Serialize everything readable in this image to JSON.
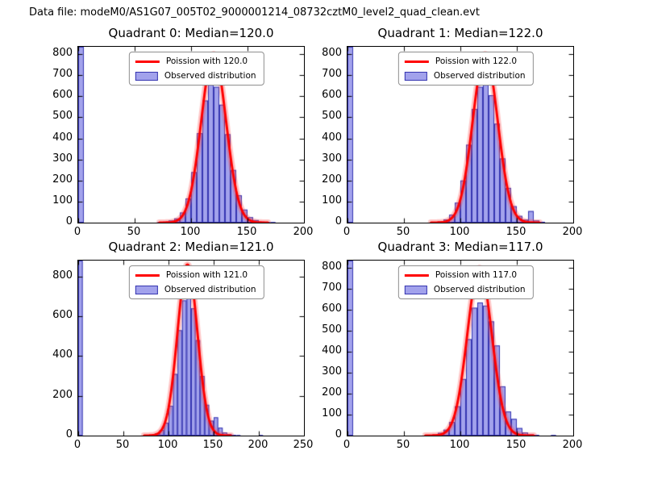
{
  "figure": {
    "title": "Data file: modeM0/AS1G07_005T02_9000001214_08732cztM0_level2_quad_clean.evt",
    "background": "#ffffff",
    "bar_fill": "rgba(85,85,220,0.55)",
    "bar_edge": "#3535b0",
    "curve_color": "#ff0000",
    "curve_halo": "rgba(255,70,70,0.30)",
    "axis_color": "#000000"
  },
  "chart_data": [
    {
      "type": "bar",
      "subtype": "histogram-with-fit-line",
      "title": "Quadrant 0: Median=120.0",
      "legend": [
        "Poission with 120.0",
        "Observed distribution"
      ],
      "legend_position": "upper center",
      "xlabel": "",
      "ylabel": "",
      "grid": false,
      "xlim": [
        0,
        200
      ],
      "ylim": [
        0,
        835
      ],
      "xticks": [
        0,
        50,
        100,
        150,
        200
      ],
      "yticks": [
        0,
        100,
        200,
        300,
        400,
        500,
        600,
        700,
        800
      ],
      "bin_width": 5,
      "bars": [
        [
          0,
          850
        ],
        [
          70,
          2
        ],
        [
          75,
          5
        ],
        [
          80,
          10
        ],
        [
          85,
          20
        ],
        [
          90,
          48
        ],
        [
          95,
          115
        ],
        [
          100,
          240
        ],
        [
          105,
          425
        ],
        [
          110,
          580
        ],
        [
          115,
          655
        ],
        [
          120,
          645
        ],
        [
          125,
          560
        ],
        [
          130,
          420
        ],
        [
          135,
          250
        ],
        [
          140,
          130
        ],
        [
          145,
          62
        ],
        [
          150,
          26
        ],
        [
          155,
          12
        ],
        [
          160,
          5
        ],
        [
          165,
          3
        ],
        [
          170,
          2
        ]
      ],
      "poisson": {
        "lambda": 120,
        "peak": 800
      }
    },
    {
      "type": "bar",
      "subtype": "histogram-with-fit-line",
      "title": "Quadrant 1: Median=122.0",
      "legend": [
        "Poission with 122.0",
        "Observed distribution"
      ],
      "legend_position": "upper center",
      "xlabel": "",
      "ylabel": "",
      "grid": false,
      "xlim": [
        0,
        200
      ],
      "ylim": [
        0,
        835
      ],
      "xticks": [
        0,
        50,
        100,
        150,
        200
      ],
      "yticks": [
        0,
        100,
        200,
        300,
        400,
        500,
        600,
        700,
        800
      ],
      "bin_width": 5,
      "bars": [
        [
          0,
          850
        ],
        [
          75,
          3
        ],
        [
          80,
          7
        ],
        [
          85,
          15
        ],
        [
          90,
          38
        ],
        [
          95,
          95
        ],
        [
          100,
          200
        ],
        [
          105,
          370
        ],
        [
          110,
          540
        ],
        [
          115,
          645
        ],
        [
          120,
          655
        ],
        [
          125,
          605
        ],
        [
          130,
          470
        ],
        [
          135,
          305
        ],
        [
          140,
          165
        ],
        [
          145,
          78
        ],
        [
          150,
          32
        ],
        [
          155,
          14
        ],
        [
          160,
          55
        ],
        [
          165,
          10
        ],
        [
          170,
          4
        ]
      ],
      "poisson": {
        "lambda": 122,
        "peak": 800
      }
    },
    {
      "type": "bar",
      "subtype": "histogram-with-fit-line",
      "title": "Quadrant 2: Median=121.0",
      "legend": [
        "Poission with 121.0",
        "Observed distribution"
      ],
      "legend_position": "upper center",
      "xlabel": "",
      "ylabel": "",
      "grid": false,
      "xlim": [
        0,
        250
      ],
      "ylim": [
        0,
        880
      ],
      "xticks": [
        0,
        50,
        100,
        150,
        200,
        250
      ],
      "yticks": [
        0,
        200,
        400,
        600,
        800
      ],
      "bin_width": 5,
      "bars": [
        [
          0,
          880
        ],
        [
          80,
          5
        ],
        [
          85,
          12
        ],
        [
          90,
          28
        ],
        [
          95,
          65
        ],
        [
          100,
          150
        ],
        [
          105,
          310
        ],
        [
          110,
          530
        ],
        [
          115,
          680
        ],
        [
          120,
          700
        ],
        [
          125,
          640
        ],
        [
          130,
          480
        ],
        [
          135,
          300
        ],
        [
          140,
          155
        ],
        [
          145,
          75
        ],
        [
          150,
          92
        ],
        [
          155,
          40
        ],
        [
          160,
          16
        ],
        [
          165,
          8
        ],
        [
          170,
          4
        ],
        [
          175,
          2
        ],
        [
          200,
          2
        ]
      ],
      "poisson": {
        "lambda": 121,
        "peak": 860
      }
    },
    {
      "type": "bar",
      "subtype": "histogram-with-fit-line",
      "title": "Quadrant 3: Median=117.0",
      "legend": [
        "Poission with 117.0",
        "Observed distribution"
      ],
      "legend_position": "upper center",
      "xlabel": "",
      "ylabel": "",
      "grid": false,
      "xlim": [
        0,
        200
      ],
      "ylim": [
        0,
        835
      ],
      "xticks": [
        0,
        50,
        100,
        150,
        200
      ],
      "yticks": [
        0,
        100,
        200,
        300,
        400,
        500,
        600,
        700,
        800
      ],
      "bin_width": 5,
      "bars": [
        [
          0,
          850
        ],
        [
          70,
          3
        ],
        [
          75,
          6
        ],
        [
          80,
          13
        ],
        [
          85,
          28
        ],
        [
          90,
          65
        ],
        [
          95,
          140
        ],
        [
          100,
          270
        ],
        [
          105,
          460
        ],
        [
          110,
          610
        ],
        [
          115,
          635
        ],
        [
          120,
          620
        ],
        [
          125,
          545
        ],
        [
          130,
          430
        ],
        [
          135,
          235
        ],
        [
          140,
          115
        ],
        [
          145,
          80
        ],
        [
          150,
          36
        ],
        [
          155,
          15
        ],
        [
          160,
          6
        ],
        [
          165,
          3
        ],
        [
          180,
          2
        ]
      ],
      "poisson": {
        "lambda": 117,
        "peak": 800
      }
    }
  ]
}
